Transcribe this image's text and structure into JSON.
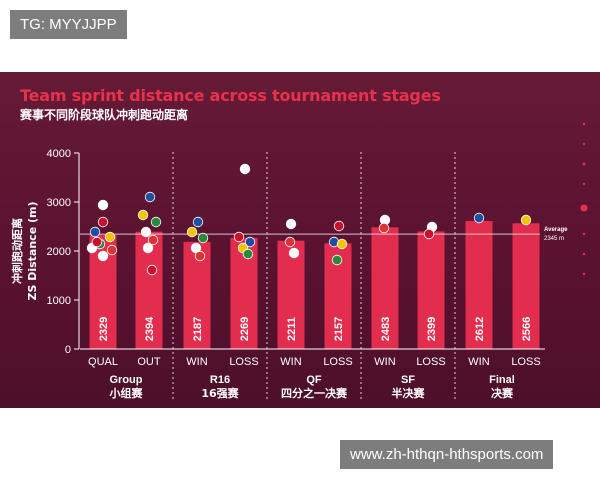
{
  "top_tag": "TG: MYYJJPP",
  "watermark": "www.zh-hthqn-hthsports.com",
  "chart_data": {
    "type": "bar",
    "title": "Team sprint distance across tournament stages",
    "subtitle": "赛事不同阶段球队冲刺跑动距离",
    "ylabel_zh": "冲刺跑动距离",
    "ylabel": "ZS Distance (m)",
    "ylim": [
      0,
      4000
    ],
    "yticks": [
      0,
      1000,
      2000,
      3000,
      4000
    ],
    "categories": [
      "QUAL",
      "OUT",
      "WIN",
      "LOSS",
      "WIN",
      "LOSS",
      "WIN",
      "LOSS",
      "WIN",
      "LOSS"
    ],
    "values": [
      2329,
      2394,
      2187,
      2269,
      2211,
      2157,
      2483,
      2399,
      2612,
      2566
    ],
    "value_labels": [
      "2329",
      "2394",
      "2187",
      "2269",
      "2211",
      "2157",
      "2483",
      "2399",
      "2612",
      "2566"
    ],
    "groups": [
      {
        "name": "Group",
        "name_zh": "小组赛"
      },
      {
        "name": "R16",
        "name_zh": "16强赛"
      },
      {
        "name": "QF",
        "name_zh": "四分之一决赛"
      },
      {
        "name": "SF",
        "name_zh": "半决赛"
      },
      {
        "name": "Final",
        "name_zh": "决赛"
      }
    ],
    "average": {
      "value": 2345,
      "label": "Average",
      "value_label": "2345 m"
    },
    "grid": false,
    "colors": {
      "bar": "#e32d4e",
      "background": "#5c1430",
      "title": "#e8324c",
      "average_line": "#d9c4cc"
    }
  }
}
